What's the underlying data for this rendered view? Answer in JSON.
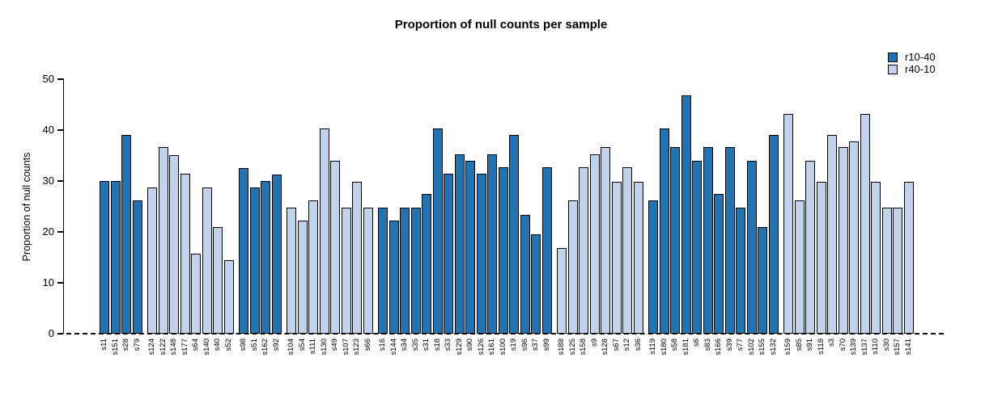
{
  "chart_data": {
    "type": "bar",
    "title": "Proportion of null counts per sample",
    "xlabel": "",
    "ylabel": "Proportion of null counts",
    "ylim": [
      0,
      50
    ],
    "yticks": [
      0,
      10,
      20,
      30,
      40,
      50
    ],
    "grid": false,
    "legend_position": "top-right",
    "zero_line_style": "dashed",
    "series": [
      {
        "name": "r10-40",
        "color": "#2273B1"
      },
      {
        "name": "r40-10",
        "color": "#C0D2EC"
      }
    ],
    "groups": [
      {
        "series": "r10-40",
        "bars": [
          [
            "s11",
            30.0
          ],
          [
            "s151",
            30.0
          ],
          [
            "s28",
            39.0
          ],
          [
            "s79",
            26.2
          ]
        ]
      },
      {
        "series": "r40-10",
        "bars": [
          [
            "s124",
            28.7
          ],
          [
            "s122",
            36.6
          ],
          [
            "s148",
            35.1
          ],
          [
            "s177",
            31.4
          ],
          [
            "s64",
            15.7
          ],
          [
            "s140",
            28.7
          ],
          [
            "s40",
            20.9
          ],
          [
            "s52",
            14.4
          ]
        ]
      },
      {
        "series": "r10-40",
        "bars": [
          [
            "s98",
            32.6
          ],
          [
            "s51",
            28.7
          ],
          [
            "s162",
            30.0
          ],
          [
            "s92",
            31.3
          ]
        ]
      },
      {
        "series": "r40-10",
        "bars": [
          [
            "s104",
            24.7
          ],
          [
            "s54",
            22.2
          ],
          [
            "s111",
            26.2
          ],
          [
            "s130",
            40.3
          ],
          [
            "s49",
            34.0
          ],
          [
            "s107",
            24.7
          ],
          [
            "s123",
            29.9
          ],
          [
            "s66",
            24.7
          ]
        ]
      },
      {
        "series": "r10-40",
        "bars": [
          [
            "s16",
            24.7
          ],
          [
            "s144",
            22.2
          ],
          [
            "s34",
            24.7
          ],
          [
            "s35",
            24.7
          ],
          [
            "s31",
            27.4
          ],
          [
            "s18",
            40.3
          ],
          [
            "s33",
            31.4
          ],
          [
            "s129",
            35.2
          ],
          [
            "s90",
            34.0
          ],
          [
            "s126",
            31.4
          ],
          [
            "s161",
            35.2
          ],
          [
            "s100",
            32.7
          ],
          [
            "s19",
            39.1
          ],
          [
            "s96",
            23.4
          ],
          [
            "s37",
            19.6
          ],
          [
            "s99",
            32.7
          ]
        ]
      },
      {
        "series": "r40-10",
        "bars": [
          [
            "s188",
            16.9
          ],
          [
            "s125",
            26.2
          ],
          [
            "s158",
            32.7
          ],
          [
            "s9",
            35.2
          ],
          [
            "s128",
            36.6
          ],
          [
            "s67",
            29.9
          ],
          [
            "s12",
            32.7
          ],
          [
            "s36",
            29.9
          ]
        ]
      },
      {
        "series": "r10-40",
        "bars": [
          [
            "s119",
            26.2
          ],
          [
            "s180",
            40.3
          ],
          [
            "s58",
            36.6
          ],
          [
            "s181",
            46.9
          ],
          [
            "s6",
            34.0
          ],
          [
            "s83",
            36.6
          ],
          [
            "s166",
            27.4
          ],
          [
            "s39",
            36.6
          ],
          [
            "s77",
            24.7
          ],
          [
            "s102",
            34.0
          ],
          [
            "s155",
            21.0
          ],
          [
            "s132",
            39.1
          ]
        ]
      },
      {
        "series": "r40-10",
        "bars": [
          [
            "s159",
            43.1
          ],
          [
            "s85",
            26.2
          ],
          [
            "s91",
            34.0
          ],
          [
            "s118",
            29.9
          ],
          [
            "s3",
            39.1
          ],
          [
            "s70",
            36.6
          ],
          [
            "s139",
            37.8
          ],
          [
            "s137",
            43.1
          ],
          [
            "s110",
            29.9
          ],
          [
            "s30",
            24.7
          ],
          [
            "s157",
            24.7
          ],
          [
            "s141",
            29.9
          ]
        ]
      }
    ]
  }
}
